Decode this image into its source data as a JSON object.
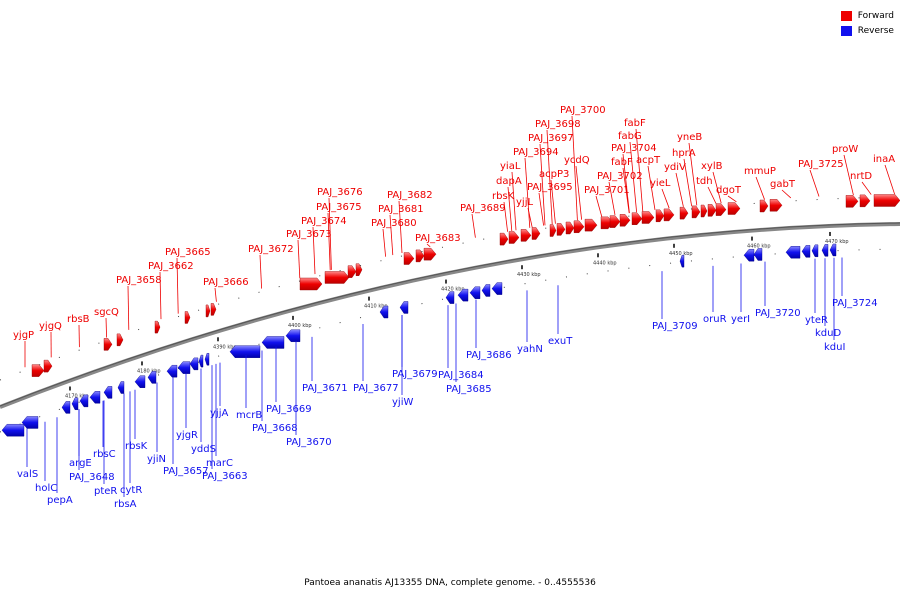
{
  "legend": {
    "forward_label": "Forward",
    "reverse_label": "Reverse",
    "forward_color": "#ee0000",
    "reverse_color": "#1111ee"
  },
  "caption": "Pantoea ananatis AJ13355 DNA, complete genome. - 0..4555536",
  "ticks": [
    "4170 kbp",
    "4180 kbp",
    "4390 kbp",
    "4400 kbp",
    "4410 kbp",
    "4420 kbp",
    "4430 kbp",
    "4440 kbp",
    "4450 kbp",
    "4460 kbp",
    "4470 kbp"
  ],
  "forward_genes": [
    "yjgP",
    "yjgQ",
    "rbsB",
    "sgcQ",
    "PAJ_3658",
    "PAJ_3662",
    "PAJ_3665",
    "PAJ_3666",
    "PAJ_3672",
    "PAJ_3673",
    "PAJ_3674",
    "PAJ_3675",
    "PAJ_3676",
    "PAJ_3680",
    "PAJ_3681",
    "PAJ_3682",
    "PAJ_3683",
    "PAJ_3689",
    "rbsK",
    "dapA",
    "yiaL",
    "yjjL",
    "acpP3",
    "PAJ_3695",
    "PAJ_3694",
    "PAJ_3697",
    "PAJ_3698",
    "PAJ_3700",
    "ycdQ",
    "PAJ_3701",
    "PAJ_3702",
    "fabF",
    "PAJ_3704",
    "fabG",
    "fabF",
    "acpT",
    "yieL",
    "ydiV",
    "hprA",
    "yneB",
    "tdh",
    "xylB",
    "dgoT",
    "mmuP",
    "gabT",
    "PAJ_3725",
    "nrtD",
    "proW",
    "inaA"
  ],
  "reverse_genes": [
    "valS",
    "holC",
    "pepA",
    "argE",
    "PAJ_3648",
    "rbsC",
    "pteR",
    "cytR",
    "rbsA",
    "rbsK",
    "yjiN",
    "PAJ_3657",
    "yjgR",
    "yddS",
    "marC",
    "PAJ_3663",
    "yjjA",
    "mcrB",
    "PAJ_3668",
    "PAJ_3669",
    "PAJ_3670",
    "PAJ_3671",
    "PAJ_3677",
    "yjiW",
    "PAJ_3679",
    "PAJ_3684",
    "PAJ_3685",
    "PAJ_3686",
    "yahN",
    "exuT",
    "PAJ_3709",
    "oruR",
    "yerI",
    "PAJ_3720",
    "yteR",
    "kduD",
    "kduI",
    "PAJ_3724"
  ]
}
